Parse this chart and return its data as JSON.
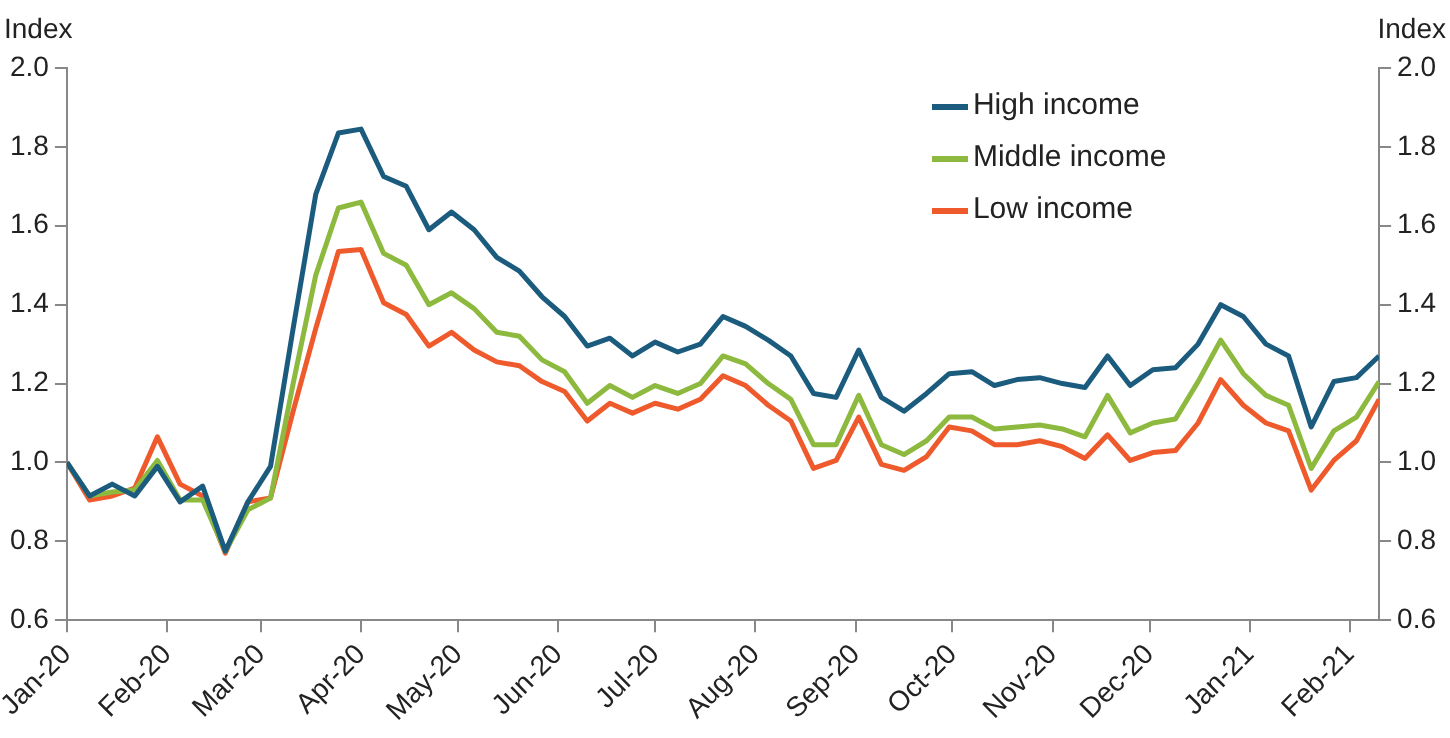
{
  "chart_data": {
    "type": "line",
    "ylabel": "Index",
    "y2label": "Index",
    "x": [
      "2020-01-01",
      "2020-01-08",
      "2020-01-15",
      "2020-01-22",
      "2020-01-29",
      "2020-02-05",
      "2020-02-12",
      "2020-02-19",
      "2020-02-26",
      "2020-03-04",
      "2020-03-11",
      "2020-03-18",
      "2020-03-25",
      "2020-04-01",
      "2020-04-08",
      "2020-04-15",
      "2020-04-22",
      "2020-04-29",
      "2020-05-06",
      "2020-05-13",
      "2020-05-20",
      "2020-05-27",
      "2020-06-03",
      "2020-06-10",
      "2020-06-17",
      "2020-06-24",
      "2020-07-01",
      "2020-07-08",
      "2020-07-15",
      "2020-07-22",
      "2020-07-29",
      "2020-08-05",
      "2020-08-12",
      "2020-08-19",
      "2020-08-26",
      "2020-09-02",
      "2020-09-09",
      "2020-09-16",
      "2020-09-23",
      "2020-09-30",
      "2020-10-07",
      "2020-10-14",
      "2020-10-21",
      "2020-10-28",
      "2020-11-04",
      "2020-11-11",
      "2020-11-18",
      "2020-11-25",
      "2020-12-02",
      "2020-12-09",
      "2020-12-16",
      "2020-12-23",
      "2020-12-30",
      "2021-01-06",
      "2021-01-13",
      "2021-01-20",
      "2021-01-27",
      "2021-02-03",
      "2021-02-10"
    ],
    "series": [
      {
        "name": "High income",
        "color": "#1b5b7e",
        "values": [
          1.0,
          0.915,
          0.945,
          0.915,
          0.99,
          0.9,
          0.94,
          0.775,
          0.9,
          0.99,
          1.34,
          1.68,
          1.835,
          1.845,
          1.725,
          1.7,
          1.59,
          1.635,
          1.59,
          1.52,
          1.485,
          1.42,
          1.37,
          1.295,
          1.315,
          1.27,
          1.305,
          1.28,
          1.3,
          1.37,
          1.345,
          1.31,
          1.27,
          1.175,
          1.165,
          1.285,
          1.165,
          1.13,
          1.175,
          1.225,
          1.23,
          1.195,
          1.21,
          1.215,
          1.2,
          1.19,
          1.27,
          1.195,
          1.235,
          1.24,
          1.3,
          1.4,
          1.37,
          1.3,
          1.27,
          1.09,
          1.205,
          1.215,
          1.27
        ]
      },
      {
        "name": "Middle income",
        "color": "#8cb93e",
        "values": [
          1.0,
          0.915,
          0.925,
          0.93,
          1.005,
          0.905,
          0.905,
          0.775,
          0.88,
          0.91,
          1.2,
          1.475,
          1.645,
          1.66,
          1.53,
          1.5,
          1.4,
          1.43,
          1.39,
          1.33,
          1.32,
          1.26,
          1.23,
          1.15,
          1.195,
          1.165,
          1.195,
          1.175,
          1.2,
          1.27,
          1.25,
          1.2,
          1.16,
          1.045,
          1.045,
          1.17,
          1.045,
          1.02,
          1.055,
          1.115,
          1.115,
          1.085,
          1.09,
          1.095,
          1.085,
          1.065,
          1.17,
          1.075,
          1.1,
          1.11,
          1.205,
          1.31,
          1.225,
          1.17,
          1.145,
          0.985,
          1.08,
          1.115,
          1.205
        ]
      },
      {
        "name": "Low income",
        "color": "#ee5a2c",
        "values": [
          1.0,
          0.905,
          0.915,
          0.935,
          1.065,
          0.945,
          0.915,
          0.77,
          0.9,
          0.91,
          1.13,
          1.34,
          1.535,
          1.54,
          1.405,
          1.375,
          1.295,
          1.33,
          1.285,
          1.255,
          1.245,
          1.205,
          1.18,
          1.105,
          1.15,
          1.125,
          1.15,
          1.135,
          1.16,
          1.22,
          1.195,
          1.145,
          1.105,
          0.985,
          1.005,
          1.115,
          0.995,
          0.98,
          1.015,
          1.09,
          1.08,
          1.045,
          1.045,
          1.055,
          1.04,
          1.01,
          1.07,
          1.005,
          1.025,
          1.03,
          1.1,
          1.21,
          1.145,
          1.1,
          1.08,
          0.93,
          1.005,
          1.055,
          1.16
        ]
      }
    ],
    "xlim": [
      "2020-01-01",
      "2021-02-10"
    ],
    "xticks": [
      {
        "value": "2020-01-01",
        "label": "Jan-20"
      },
      {
        "value": "2020-02-01",
        "label": "Feb-20"
      },
      {
        "value": "2020-03-01",
        "label": "Mar-20"
      },
      {
        "value": "2020-04-01",
        "label": "Apr-20"
      },
      {
        "value": "2020-05-01",
        "label": "May-20"
      },
      {
        "value": "2020-06-01",
        "label": "Jun-20"
      },
      {
        "value": "2020-07-01",
        "label": "Jul-20"
      },
      {
        "value": "2020-08-01",
        "label": "Aug-20"
      },
      {
        "value": "2020-09-01",
        "label": "Sep-20"
      },
      {
        "value": "2020-10-01",
        "label": "Oct-20"
      },
      {
        "value": "2020-11-01",
        "label": "Nov-20"
      },
      {
        "value": "2020-12-01",
        "label": "Dec-20"
      },
      {
        "value": "2021-01-01",
        "label": "Jan-21"
      },
      {
        "value": "2021-02-01",
        "label": "Feb-21"
      }
    ],
    "ylim": [
      0.6,
      2.0
    ],
    "yticks": [
      {
        "value": 0.6,
        "label": "0.6"
      },
      {
        "value": 0.8,
        "label": "0.8"
      },
      {
        "value": 1.0,
        "label": "1.0"
      },
      {
        "value": 1.2,
        "label": "1.2"
      },
      {
        "value": 1.4,
        "label": "1.4"
      },
      {
        "value": 1.6,
        "label": "1.6"
      },
      {
        "value": 1.8,
        "label": "1.8"
      },
      {
        "value": 2.0,
        "label": "2.0"
      }
    ],
    "y2lim": [
      0.6,
      2.0
    ],
    "y2ticks": [
      {
        "value": 0.6,
        "label": "0.6"
      },
      {
        "value": 0.8,
        "label": "0.8"
      },
      {
        "value": 1.0,
        "label": "1.0"
      },
      {
        "value": 1.2,
        "label": "1.2"
      },
      {
        "value": 1.4,
        "label": "1.4"
      },
      {
        "value": 1.6,
        "label": "1.6"
      },
      {
        "value": 1.8,
        "label": "1.8"
      },
      {
        "value": 2.0,
        "label": "2.0"
      }
    ],
    "grid": false,
    "legend": "top right",
    "marker": "none",
    "line_style": "solid"
  }
}
